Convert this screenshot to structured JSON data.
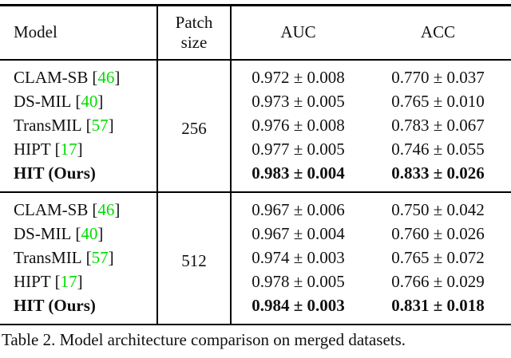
{
  "table": {
    "header": {
      "model": "Model",
      "patch_line1": "Patch",
      "patch_line2": "size",
      "auc": "AUC",
      "acc": "ACC"
    },
    "brackets": {
      "open": "[",
      "close": "]"
    },
    "colors": {
      "citation_green": "#00dd00",
      "text": "#111111",
      "rule": "#000000"
    },
    "groups": [
      {
        "patch_size": "256",
        "rows": [
          {
            "model": "CLAM-SB",
            "cite": "46",
            "auc": "0.972 ± 0.008",
            "acc": "0.770 ± 0.037"
          },
          {
            "model": "DS-MIL",
            "cite": "40",
            "auc": "0.973 ± 0.005",
            "acc": "0.765 ± 0.010"
          },
          {
            "model": "TransMIL",
            "cite": "57",
            "auc": "0.976 ± 0.008",
            "acc": "0.783 ± 0.067"
          },
          {
            "model": "HIPT",
            "cite": "17",
            "auc": "0.977 ± 0.005",
            "acc": "0.746 ± 0.055"
          },
          {
            "model": "HIT (Ours)",
            "cite": "",
            "auc": "0.983 ± 0.004",
            "acc": "0.833 ± 0.026"
          }
        ]
      },
      {
        "patch_size": "512",
        "rows": [
          {
            "model": "CLAM-SB",
            "cite": "46",
            "auc": "0.967 ± 0.006",
            "acc": "0.750 ± 0.042"
          },
          {
            "model": "DS-MIL",
            "cite": "40",
            "auc": "0.967 ± 0.004",
            "acc": "0.760 ± 0.026"
          },
          {
            "model": "TransMIL",
            "cite": "57",
            "auc": "0.974 ± 0.003",
            "acc": "0.765 ± 0.072"
          },
          {
            "model": "HIPT",
            "cite": "17",
            "auc": "0.978 ± 0.005",
            "acc": "0.766 ± 0.029"
          },
          {
            "model": "HIT (Ours)",
            "cite": "",
            "auc": "0.984 ± 0.003",
            "acc": "0.831 ± 0.018"
          }
        ]
      }
    ]
  },
  "caption": "Table 2. Model architecture comparison on merged datasets."
}
